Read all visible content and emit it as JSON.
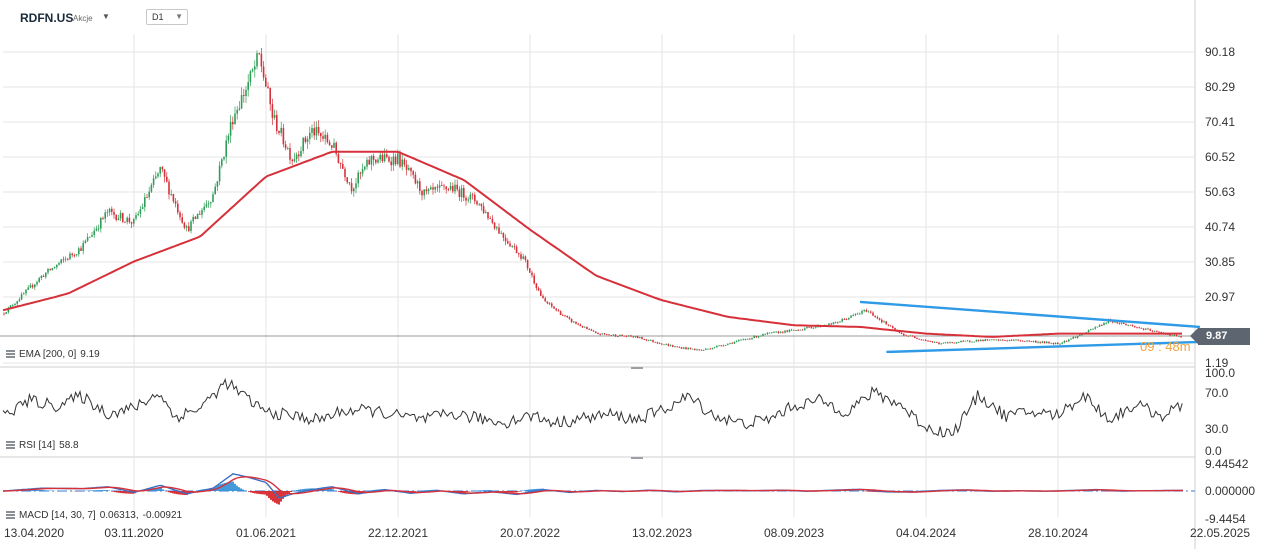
{
  "header": {
    "symbol": "RDFN.US",
    "symbol_type": "Akcje",
    "timeframe": "D1"
  },
  "colors": {
    "up_candle": "#2e9e57",
    "down_candle": "#d6313a",
    "ema_line": "#d6313a",
    "trend_lines": "#2f9ae6",
    "rsi_line": "#333333",
    "macd_line": "#3d6fc2",
    "signal_line": "#d6313a",
    "hist_up": "#2f8fd6",
    "hist_down": "#d61f26",
    "price_tag": "#5c6570",
    "grid": "#e6e6e6"
  },
  "price_tag": "9.87",
  "overlay_text": "09 : 48m",
  "chart_data": [
    {
      "type": "candlestick",
      "panel": "price",
      "y_ticks": [
        "90.18",
        "80.29",
        "70.41",
        "60.52",
        "50.63",
        "40.74",
        "30.85",
        "20.97",
        "1.19"
      ],
      "ylim": [
        1.19,
        96
      ],
      "x": [
        "13.04.2020",
        "03.11.2020",
        "01.06.2021",
        "22.12.2021",
        "20.07.2022",
        "13.02.2023",
        "08.09.2023",
        "04.04.2024",
        "28.10.2024",
        "22.05.2025"
      ],
      "close": [
        [
          0,
          16
        ],
        [
          0.3,
          27
        ],
        [
          0.6,
          35
        ],
        [
          0.8,
          45
        ],
        [
          1.0,
          42
        ],
        [
          1.2,
          57
        ],
        [
          1.4,
          40
        ],
        [
          1.6,
          50
        ],
        [
          1.75,
          72
        ],
        [
          1.85,
          80
        ],
        [
          1.95,
          89
        ],
        [
          2.05,
          72
        ],
        [
          2.2,
          60
        ],
        [
          2.35,
          68
        ],
        [
          2.5,
          64
        ],
        [
          2.65,
          52
        ],
        [
          2.8,
          60
        ],
        [
          3.0,
          60
        ],
        [
          3.2,
          50
        ],
        [
          3.4,
          52
        ],
        [
          3.6,
          48
        ],
        [
          3.8,
          38
        ],
        [
          3.95,
          32
        ],
        [
          4.1,
          20
        ],
        [
          4.3,
          14
        ],
        [
          4.5,
          10
        ],
        [
          4.8,
          9
        ],
        [
          5.1,
          6
        ],
        [
          5.3,
          5
        ],
        [
          5.6,
          8
        ],
        [
          5.8,
          10
        ],
        [
          6.0,
          11
        ],
        [
          6.3,
          13
        ],
        [
          6.55,
          17
        ],
        [
          6.8,
          10
        ],
        [
          7.1,
          7
        ],
        [
          7.4,
          8
        ],
        [
          7.7,
          8
        ],
        [
          8.0,
          7
        ],
        [
          8.2,
          10
        ],
        [
          8.4,
          14
        ],
        [
          8.7,
          11
        ],
        [
          8.95,
          9
        ],
        [
          9.1,
          9.87
        ]
      ],
      "series": [
        {
          "name": "EMA [200, 0]",
          "last_value": "9.19",
          "values": [
            [
              0,
              17
            ],
            [
              0.5,
              22
            ],
            [
              1.0,
              31
            ],
            [
              1.5,
              38
            ],
            [
              2.0,
              55
            ],
            [
              2.5,
              62
            ],
            [
              3.0,
              62
            ],
            [
              3.5,
              54
            ],
            [
              4.0,
              40
            ],
            [
              4.5,
              27
            ],
            [
              5.0,
              20
            ],
            [
              5.5,
              15
            ],
            [
              6.0,
              12.5
            ],
            [
              6.5,
              12
            ],
            [
              7.0,
              10
            ],
            [
              7.5,
              9
            ],
            [
              8.0,
              10
            ],
            [
              8.5,
              10
            ],
            [
              9.0,
              10
            ],
            [
              9.1,
              10.5
            ]
          ]
        },
        {
          "name": "trendline-upper",
          "values": [
            [
              6.5,
              19.5
            ],
            [
              9.1,
              12
            ]
          ]
        },
        {
          "name": "trendline-lower",
          "values": [
            [
              6.7,
              4.5
            ],
            [
              9.1,
              7.5
            ]
          ]
        }
      ]
    },
    {
      "type": "line",
      "panel": "rsi",
      "series": [
        {
          "name": "RSI [14]",
          "last_value": "58.8"
        }
      ],
      "y_ticks": [
        "100.0",
        "70.0",
        "30.0",
        "0.0"
      ],
      "ylim": [
        0,
        100
      ],
      "values": [
        [
          0,
          45
        ],
        [
          0.2,
          65
        ],
        [
          0.4,
          58
        ],
        [
          0.6,
          70
        ],
        [
          0.8,
          48
        ],
        [
          1.0,
          55
        ],
        [
          1.2,
          75
        ],
        [
          1.3,
          43
        ],
        [
          1.5,
          55
        ],
        [
          1.7,
          88
        ],
        [
          1.85,
          68
        ],
        [
          2.0,
          50
        ],
        [
          2.2,
          45
        ],
        [
          2.4,
          40
        ],
        [
          2.6,
          52
        ],
        [
          2.8,
          52
        ],
        [
          3.0,
          45
        ],
        [
          3.2,
          40
        ],
        [
          3.4,
          48
        ],
        [
          3.6,
          42
        ],
        [
          3.8,
          36
        ],
        [
          4.0,
          46
        ],
        [
          4.2,
          36
        ],
        [
          4.4,
          42
        ],
        [
          4.6,
          47
        ],
        [
          4.8,
          40
        ],
        [
          5.0,
          52
        ],
        [
          5.2,
          70
        ],
        [
          5.4,
          45
        ],
        [
          5.6,
          35
        ],
        [
          5.8,
          40
        ],
        [
          6.0,
          58
        ],
        [
          6.2,
          65
        ],
        [
          6.4,
          50
        ],
        [
          6.6,
          75
        ],
        [
          6.8,
          60
        ],
        [
          7.0,
          30
        ],
        [
          7.2,
          22
        ],
        [
          7.4,
          72
        ],
        [
          7.6,
          45
        ],
        [
          7.8,
          50
        ],
        [
          8.0,
          46
        ],
        [
          8.2,
          72
        ],
        [
          8.4,
          40
        ],
        [
          8.6,
          60
        ],
        [
          8.8,
          45
        ],
        [
          9.0,
          60
        ],
        [
          9.1,
          58.8
        ]
      ]
    },
    {
      "type": "line",
      "panel": "macd",
      "series": [
        {
          "name": "MACD [14, 30, 7]",
          "last_value": "0.06313"
        },
        {
          "name": "signal",
          "last_value": "-0.00921"
        }
      ],
      "y_ticks": [
        "9.44542",
        "0.000000",
        "-9.4454"
      ],
      "ylim": [
        -9.4454,
        9.44542
      ],
      "macd": [
        [
          0,
          0
        ],
        [
          0.3,
          1.0
        ],
        [
          0.6,
          0.8
        ],
        [
          0.8,
          1.5
        ],
        [
          1.0,
          -0.5
        ],
        [
          1.2,
          2.0
        ],
        [
          1.4,
          -1.0
        ],
        [
          1.6,
          1.0
        ],
        [
          1.75,
          6.0
        ],
        [
          1.85,
          5.0
        ],
        [
          2.0,
          3.0
        ],
        [
          2.1,
          -2.5
        ],
        [
          2.2,
          -1.0
        ],
        [
          2.35,
          0.5
        ],
        [
          2.5,
          1.5
        ],
        [
          2.7,
          -1.0
        ],
        [
          2.9,
          0.5
        ],
        [
          3.1,
          -0.8
        ],
        [
          3.3,
          0.2
        ],
        [
          3.5,
          -1.0
        ],
        [
          3.7,
          -0.2
        ],
        [
          3.9,
          -1.2
        ],
        [
          4.1,
          0.5
        ],
        [
          4.3,
          -0.5
        ],
        [
          4.5,
          0.2
        ],
        [
          4.7,
          -0.2
        ],
        [
          4.9,
          0.3
        ],
        [
          5.1,
          -0.3
        ],
        [
          5.3,
          0.2
        ],
        [
          5.5,
          0.2
        ],
        [
          5.7,
          0.1
        ],
        [
          5.9,
          0.3
        ],
        [
          6.1,
          -0.1
        ],
        [
          6.3,
          0.3
        ],
        [
          6.5,
          0.6
        ],
        [
          6.7,
          -0.3
        ],
        [
          6.9,
          -0.4
        ],
        [
          7.1,
          0.2
        ],
        [
          7.3,
          0.4
        ],
        [
          7.5,
          -0.1
        ],
        [
          7.7,
          0.1
        ],
        [
          7.9,
          -0.1
        ],
        [
          8.1,
          0.2
        ],
        [
          8.3,
          0.5
        ],
        [
          8.5,
          0.0
        ],
        [
          8.7,
          0.1
        ],
        [
          8.9,
          0.2
        ],
        [
          9.1,
          0.06313
        ]
      ]
    }
  ]
}
